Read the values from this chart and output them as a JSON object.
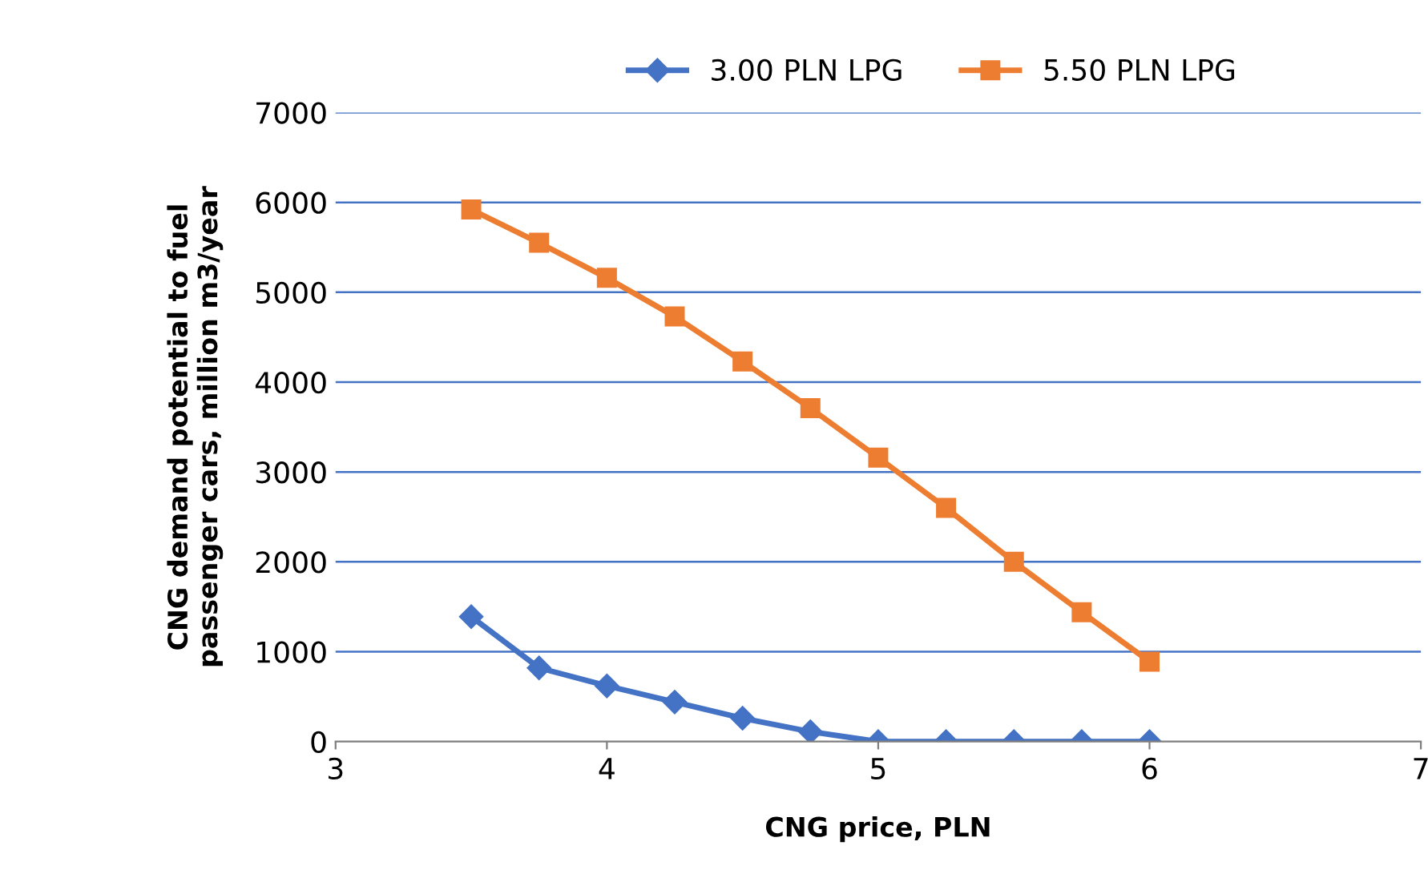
{
  "chart_data": {
    "type": "line",
    "xlabel": "CNG price, PLN",
    "ylabel": "CNG demand potential to fuel\npassenger cars, million m3/year",
    "x": [
      3.5,
      3.75,
      4,
      4.25,
      4.5,
      4.75,
      5,
      5.25,
      5.5,
      5.75,
      6
    ],
    "series": [
      {
        "name": "3.00 PLN LPG",
        "color": "#4472c4",
        "marker": "diamond",
        "values": [
          1390,
          820,
          620,
          440,
          260,
          110,
          0,
          0,
          0,
          0,
          0
        ]
      },
      {
        "name": "5.50 PLN LPG",
        "color": "#ed7d31",
        "marker": "square",
        "values": [
          5920,
          5550,
          5160,
          4730,
          4230,
          3710,
          3160,
          2600,
          2000,
          1440,
          890
        ]
      }
    ],
    "xlim": [
      3,
      7
    ],
    "xticks": [
      3,
      4,
      5,
      6,
      7
    ],
    "ylim": [
      0,
      7000
    ],
    "yticks": [
      0,
      1000,
      2000,
      3000,
      4000,
      5000,
      6000,
      7000
    ],
    "grid": "y",
    "legend": "top",
    "line_style": "solid"
  }
}
